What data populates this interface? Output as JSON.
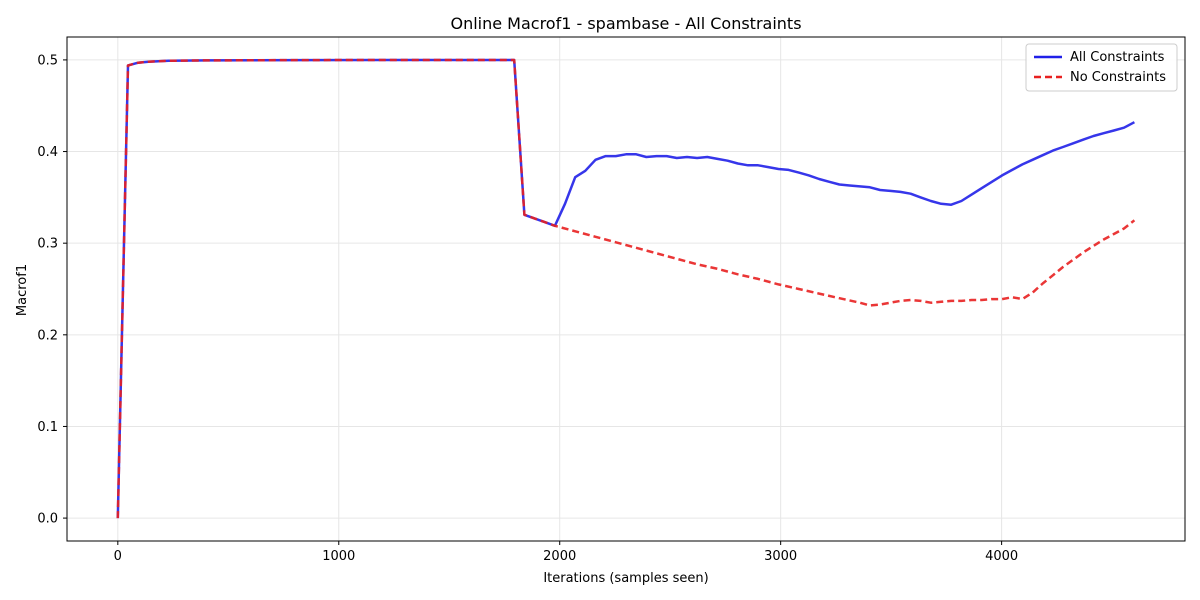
{
  "chart_data": {
    "type": "line",
    "title": "Online Macrof1 - spambase - All Constraints",
    "xlabel": "Iterations (samples seen)",
    "ylabel": "Macrof1",
    "xlim": [
      -230,
      4830
    ],
    "ylim": [
      -0.025,
      0.525
    ],
    "xticks": [
      0,
      1000,
      2000,
      3000,
      4000
    ],
    "xtick_labels": [
      "0",
      "1000",
      "2000",
      "3000",
      "4000"
    ],
    "yticks": [
      0.0,
      0.1,
      0.2,
      0.3,
      0.4,
      0.5
    ],
    "ytick_labels": [
      "0.0",
      "0.1",
      "0.2",
      "0.3",
      "0.4",
      "0.5"
    ],
    "grid": true,
    "legend_position": "top-right",
    "series": [
      {
        "name": "All Constraints",
        "color": "#2020e8",
        "style": "solid",
        "points": [
          [
            0,
            0.0
          ],
          [
            46,
            0.494
          ],
          [
            92,
            0.497
          ],
          [
            138,
            0.498
          ],
          [
            230,
            0.499
          ],
          [
            400,
            0.4995
          ],
          [
            800,
            0.4998
          ],
          [
            1200,
            0.4999
          ],
          [
            1600,
            0.4999
          ],
          [
            1794,
            0.4999
          ],
          [
            1840,
            0.331
          ],
          [
            1886,
            0.327
          ],
          [
            1932,
            0.323
          ],
          [
            1978,
            0.319
          ],
          [
            2024,
            0.343
          ],
          [
            2070,
            0.372
          ],
          [
            2116,
            0.379
          ],
          [
            2162,
            0.391
          ],
          [
            2208,
            0.395
          ],
          [
            2254,
            0.395
          ],
          [
            2300,
            0.397
          ],
          [
            2346,
            0.397
          ],
          [
            2392,
            0.394
          ],
          [
            2438,
            0.395
          ],
          [
            2484,
            0.395
          ],
          [
            2530,
            0.393
          ],
          [
            2576,
            0.394
          ],
          [
            2622,
            0.393
          ],
          [
            2668,
            0.394
          ],
          [
            2714,
            0.392
          ],
          [
            2760,
            0.39
          ],
          [
            2806,
            0.387
          ],
          [
            2852,
            0.385
          ],
          [
            2898,
            0.385
          ],
          [
            2944,
            0.383
          ],
          [
            2990,
            0.381
          ],
          [
            3036,
            0.38
          ],
          [
            3082,
            0.377
          ],
          [
            3128,
            0.374
          ],
          [
            3174,
            0.37
          ],
          [
            3220,
            0.367
          ],
          [
            3266,
            0.364
          ],
          [
            3312,
            0.363
          ],
          [
            3358,
            0.362
          ],
          [
            3404,
            0.361
          ],
          [
            3450,
            0.358
          ],
          [
            3496,
            0.357
          ],
          [
            3542,
            0.356
          ],
          [
            3588,
            0.354
          ],
          [
            3634,
            0.35
          ],
          [
            3680,
            0.346
          ],
          [
            3726,
            0.343
          ],
          [
            3772,
            0.342
          ],
          [
            3818,
            0.346
          ],
          [
            3864,
            0.353
          ],
          [
            3910,
            0.36
          ],
          [
            3956,
            0.367
          ],
          [
            4002,
            0.374
          ],
          [
            4048,
            0.38
          ],
          [
            4094,
            0.386
          ],
          [
            4140,
            0.391
          ],
          [
            4186,
            0.396
          ],
          [
            4232,
            0.401
          ],
          [
            4278,
            0.405
          ],
          [
            4324,
            0.409
          ],
          [
            4370,
            0.413
          ],
          [
            4416,
            0.417
          ],
          [
            4462,
            0.42
          ],
          [
            4508,
            0.423
          ],
          [
            4554,
            0.426
          ],
          [
            4601,
            0.432
          ]
        ]
      },
      {
        "name": "No Constraints",
        "color": "#e82020",
        "style": "dashed",
        "points": [
          [
            0,
            0.0
          ],
          [
            46,
            0.494
          ],
          [
            92,
            0.497
          ],
          [
            138,
            0.498
          ],
          [
            230,
            0.499
          ],
          [
            400,
            0.4995
          ],
          [
            800,
            0.4998
          ],
          [
            1200,
            0.4999
          ],
          [
            1600,
            0.4999
          ],
          [
            1794,
            0.4999
          ],
          [
            1840,
            0.331
          ],
          [
            1886,
            0.327
          ],
          [
            1932,
            0.323
          ],
          [
            1978,
            0.319
          ],
          [
            2070,
            0.313
          ],
          [
            2162,
            0.307
          ],
          [
            2254,
            0.301
          ],
          [
            2346,
            0.295
          ],
          [
            2438,
            0.289
          ],
          [
            2530,
            0.283
          ],
          [
            2622,
            0.277
          ],
          [
            2714,
            0.272
          ],
          [
            2806,
            0.266
          ],
          [
            2898,
            0.261
          ],
          [
            2990,
            0.255
          ],
          [
            3082,
            0.25
          ],
          [
            3174,
            0.245
          ],
          [
            3266,
            0.24
          ],
          [
            3358,
            0.235
          ],
          [
            3404,
            0.232
          ],
          [
            3450,
            0.233
          ],
          [
            3496,
            0.235
          ],
          [
            3542,
            0.237
          ],
          [
            3588,
            0.238
          ],
          [
            3634,
            0.237
          ],
          [
            3680,
            0.235
          ],
          [
            3726,
            0.236
          ],
          [
            3772,
            0.237
          ],
          [
            3818,
            0.237
          ],
          [
            3864,
            0.238
          ],
          [
            3910,
            0.238
          ],
          [
            3956,
            0.239
          ],
          [
            4002,
            0.239
          ],
          [
            4048,
            0.241
          ],
          [
            4094,
            0.239
          ],
          [
            4140,
            0.246
          ],
          [
            4186,
            0.256
          ],
          [
            4232,
            0.265
          ],
          [
            4278,
            0.274
          ],
          [
            4324,
            0.282
          ],
          [
            4370,
            0.29
          ],
          [
            4416,
            0.297
          ],
          [
            4462,
            0.304
          ],
          [
            4508,
            0.31
          ],
          [
            4554,
            0.316
          ],
          [
            4601,
            0.325
          ]
        ]
      }
    ]
  }
}
